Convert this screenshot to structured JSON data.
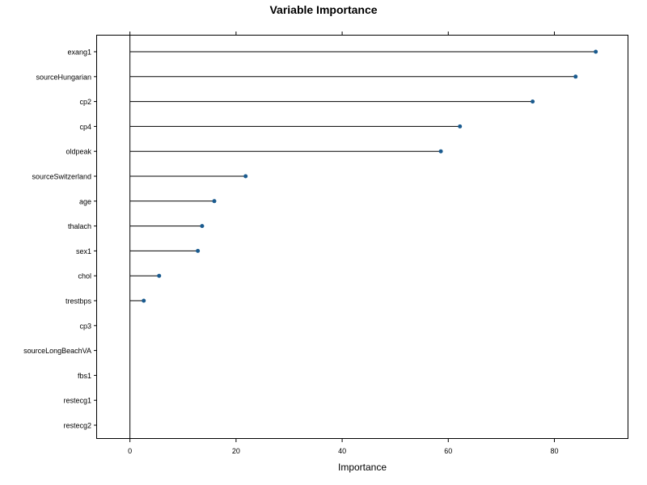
{
  "chart_data": {
    "type": "dot",
    "title": "Variable Importance",
    "xlabel": "Importance",
    "ylabel": "",
    "xlim": [
      -6.2,
      93.8
    ],
    "xticks": [
      0,
      20,
      40,
      60,
      80
    ],
    "grid": false,
    "categories": [
      "exang1",
      "sourceHungarian",
      "cp2",
      "cp4",
      "oldpeak",
      "sourceSwitzerland",
      "age",
      "thalach",
      "sex1",
      "chol",
      "trestbps",
      "cp3",
      "sourceLongBeachVA",
      "fbs1",
      "restecg1",
      "restecg2"
    ],
    "values": [
      87.8,
      84.0,
      75.9,
      62.2,
      58.6,
      21.8,
      15.9,
      13.6,
      12.8,
      5.5,
      2.6,
      0,
      0,
      0,
      0,
      0
    ],
    "color": "#1a5b8f"
  }
}
